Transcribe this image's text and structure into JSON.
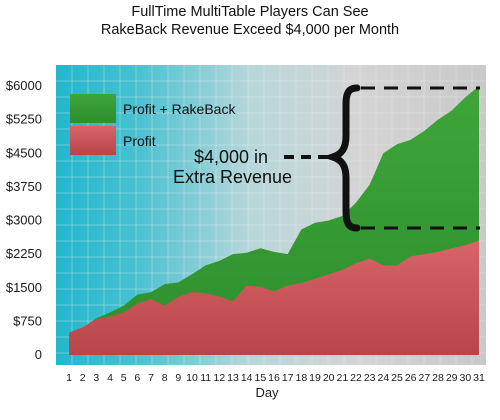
{
  "chart_data": {
    "type": "area",
    "title": "FullTime MultiTable Players Can See",
    "subtitle": "RakeBack Revenue Exceed $4,000 per Month",
    "xlabel": "Day",
    "ylabel": "",
    "categories": [
      "1",
      "2",
      "3",
      "4",
      "5",
      "6",
      "7",
      "8",
      "9",
      "10",
      "11",
      "12",
      "13",
      "14",
      "15",
      "16",
      "17",
      "18",
      "19",
      "20",
      "21",
      "22",
      "23",
      "24",
      "25",
      "26",
      "27",
      "28",
      "29",
      "30",
      "31"
    ],
    "series": [
      {
        "name": "Profit + RakeBack",
        "color": "#3fa33a",
        "values": [
          480,
          600,
          820,
          950,
          1100,
          1350,
          1400,
          1580,
          1620,
          1800,
          2000,
          2100,
          2250,
          2280,
          2380,
          2300,
          2250,
          2800,
          2950,
          3000,
          3100,
          3400,
          3800,
          4500,
          4700,
          4800,
          5000,
          5250,
          5450,
          5750,
          6000
        ]
      },
      {
        "name": "Profit",
        "color": "#c9575a",
        "values": [
          500,
          620,
          800,
          860,
          950,
          1150,
          1250,
          1100,
          1300,
          1400,
          1380,
          1300,
          1200,
          1550,
          1520,
          1420,
          1550,
          1600,
          1700,
          1800,
          1900,
          2050,
          2150,
          2000,
          2000,
          2200,
          2250,
          2300,
          2380,
          2450,
          2550
        ]
      }
    ],
    "ylim": [
      0,
      6000
    ],
    "yticks": [
      0,
      750,
      1500,
      2250,
      3000,
      3750,
      4500,
      5250,
      6000
    ],
    "ytick_labels": [
      "0",
      "$750",
      "$1500",
      "$2250",
      "$3000",
      "$3750",
      "$4500",
      "$5250",
      "$6000"
    ],
    "grid": true,
    "legend_position": "top-left",
    "colors": {
      "plot_background_cyan": "#2fb8cf",
      "plot_background_gray": "#c8c8c8",
      "grid_lines": "#a9d8e0"
    },
    "annotations": [
      {
        "lines": [
          "$4,000 in",
          "Extra Revenue"
        ],
        "brace_range": [
          2600,
          6000
        ]
      }
    ]
  }
}
